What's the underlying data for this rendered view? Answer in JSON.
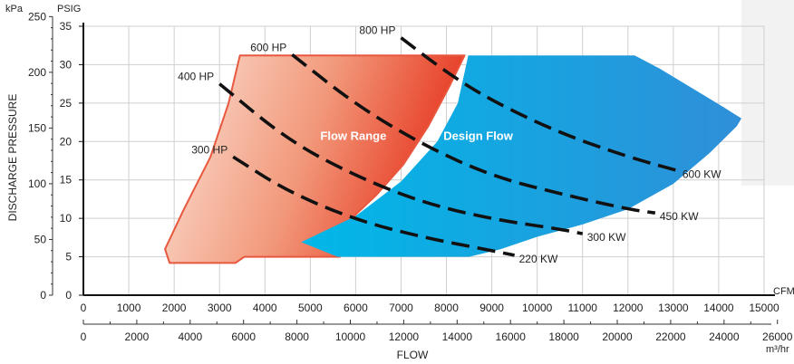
{
  "chart_data": {
    "type": "area",
    "title": "",
    "ylabel": "DISCHARGE PRESSURE",
    "xlabel": "FLOW",
    "x_axis_primary": {
      "unit": "CFM",
      "range": [
        0,
        15000
      ],
      "ticks": [
        "0",
        "1000",
        "2000",
        "3000",
        "4000",
        "5000",
        "6000",
        "7000",
        "8000",
        "9000",
        "10000",
        "11000",
        "12000",
        "13000",
        "14000",
        "15000"
      ]
    },
    "x_axis_secondary": {
      "unit": "m³/hr",
      "range": [
        0,
        25500
      ],
      "ticks": [
        "0",
        "2000",
        "4000",
        "6000",
        "8000",
        "10000",
        "12000",
        "14000",
        "16000",
        "18000",
        "20000",
        "22000",
        "24000",
        "26000"
      ]
    },
    "y_axis_primary": {
      "unit": "PSIG",
      "range": [
        0,
        35
      ],
      "ticks": [
        "0",
        "5",
        "10",
        "15",
        "20",
        "25",
        "30",
        "35"
      ]
    },
    "y_axis_secondary": {
      "unit": "kPa",
      "ticks": [
        {
          "label": "0",
          "psig": 0
        },
        {
          "label": "50",
          "psig": 7.25
        },
        {
          "label": "100",
          "psig": 14.5
        },
        {
          "label": "150",
          "psig": 21.76
        },
        {
          "label": "200",
          "psig": 29.0
        },
        {
          "label": "250",
          "psig": 36.26
        }
      ]
    },
    "regions": [
      {
        "label": "Flow Range",
        "color_light": "#fbe2d6",
        "color_dark": "#e8422a",
        "outline": "#e8583e",
        "points": [
          [
            3450,
            31.2
          ],
          [
            8400,
            31.2
          ],
          [
            8050,
            27
          ],
          [
            7600,
            22
          ],
          [
            7050,
            17
          ],
          [
            6450,
            13
          ],
          [
            6000,
            10.5
          ],
          [
            5650,
            5
          ],
          [
            3550,
            5
          ],
          [
            3350,
            4.2
          ],
          [
            1900,
            4.2
          ],
          [
            1800,
            6
          ],
          [
            2200,
            11
          ],
          [
            2800,
            18
          ],
          [
            3200,
            25
          ]
        ]
      },
      {
        "label": "Design Flow",
        "color_light": "#00b6e7",
        "color_dark": "#2a96d9",
        "points": [
          [
            8480,
            31.2
          ],
          [
            12150,
            31.2
          ],
          [
            12700,
            29.5
          ],
          [
            14100,
            24.5
          ],
          [
            14500,
            23
          ],
          [
            14400,
            22
          ],
          [
            13800,
            18.5
          ],
          [
            13000,
            14.5
          ],
          [
            12000,
            11.2
          ],
          [
            11000,
            9.2
          ],
          [
            10000,
            7.6
          ],
          [
            9200,
            6
          ],
          [
            8500,
            5
          ],
          [
            5600,
            5
          ],
          [
            4800,
            6.9
          ],
          [
            6000,
            10.3
          ],
          [
            7000,
            14.8
          ],
          [
            7800,
            20
          ],
          [
            8250,
            25
          ]
        ]
      }
    ],
    "series": [
      {
        "name": "300 HP",
        "end_label": "220 KW",
        "points": [
          [
            3300,
            18
          ],
          [
            4500,
            13.5
          ],
          [
            6000,
            9.8
          ],
          [
            7500,
            7.5
          ],
          [
            9000,
            5.8
          ],
          [
            9500,
            5.2
          ]
        ]
      },
      {
        "name": "400 HP",
        "end_label": "300 KW",
        "points": [
          [
            3000,
            27.5
          ],
          [
            4500,
            20.2
          ],
          [
            6000,
            15.5
          ],
          [
            7500,
            12
          ],
          [
            9000,
            9.9
          ],
          [
            10500,
            8.6
          ],
          [
            11000,
            8
          ]
        ]
      },
      {
        "name": "600 HP",
        "end_label": "450 KW",
        "points": [
          [
            4600,
            31.3
          ],
          [
            6000,
            24.8
          ],
          [
            7500,
            19.5
          ],
          [
            9000,
            15.5
          ],
          [
            10500,
            13.2
          ],
          [
            12000,
            11.2
          ],
          [
            12600,
            10.7
          ]
        ]
      },
      {
        "name": "800 HP",
        "end_label": "600 KW",
        "points": [
          [
            7000,
            33.5
          ],
          [
            8000,
            29
          ],
          [
            9000,
            25.3
          ],
          [
            10500,
            21.1
          ],
          [
            12000,
            18
          ],
          [
            13100,
            16.2
          ]
        ]
      }
    ],
    "grid": true,
    "legend": "none"
  }
}
